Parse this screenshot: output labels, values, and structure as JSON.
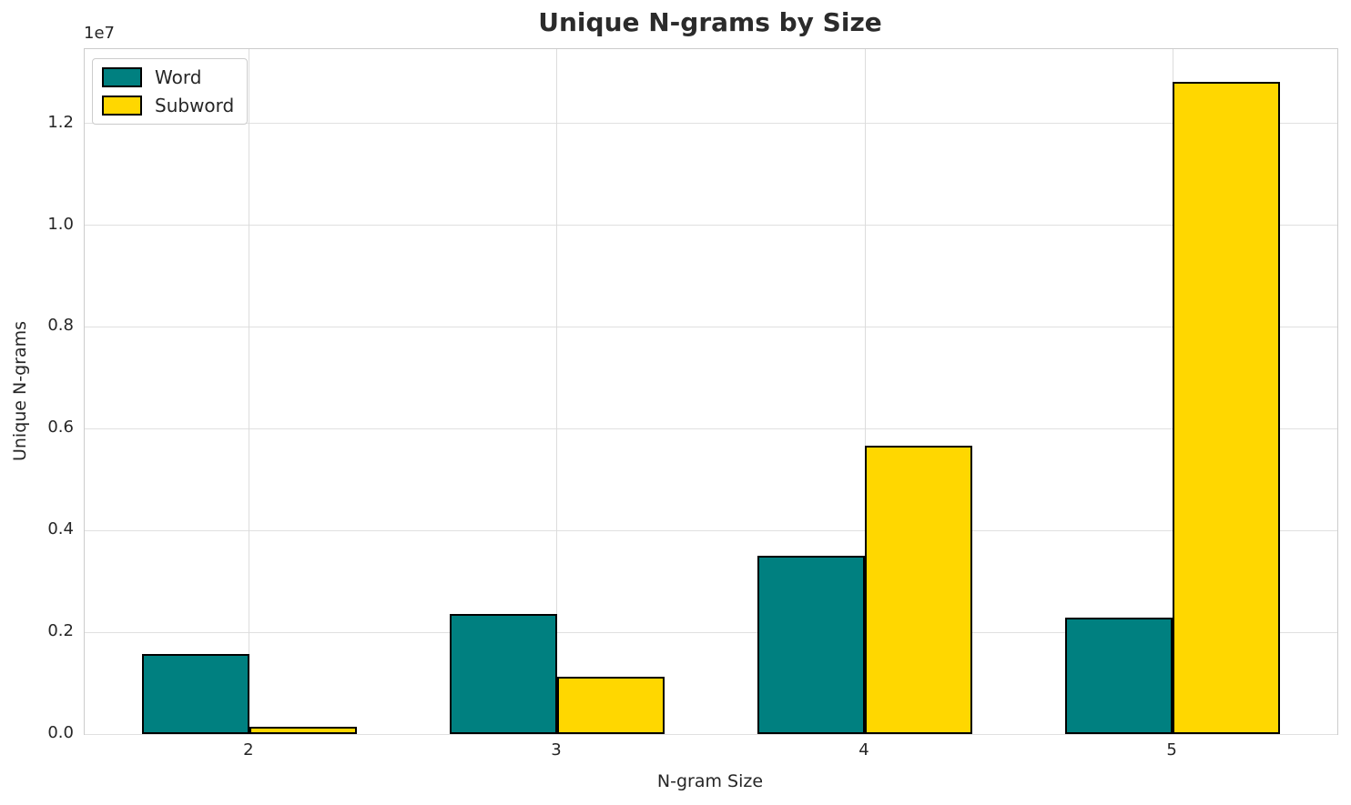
{
  "chart_data": {
    "type": "bar",
    "title": "Unique N-grams by Size",
    "xlabel": "N-gram Size",
    "ylabel": "Unique N-grams",
    "categories": [
      "2",
      "3",
      "4",
      "5"
    ],
    "series": [
      {
        "name": "Word",
        "color": "#008080",
        "values": [
          1570000,
          2360000,
          3500000,
          2290000
        ]
      },
      {
        "name": "Subword",
        "color": "#FFD700",
        "values": [
          150000,
          1130000,
          5660000,
          12820000
        ]
      }
    ],
    "bar_edge_color": "#000000",
    "bar_width_axis_units": 0.35,
    "ylim": [
      0,
      13460000
    ],
    "yticks": [
      0,
      2000000,
      4000000,
      6000000,
      8000000,
      10000000,
      12000000
    ],
    "ytick_labels": [
      "0.0",
      "0.2",
      "0.4",
      "0.6",
      "0.8",
      "1.0",
      "1.2"
    ],
    "y_offset_text": "1e7",
    "grid": true,
    "legend_position": "upper left"
  },
  "colors": {
    "text": "#262626",
    "grid": "#e0e0e0",
    "spine": "#cccccc",
    "background": "#ffffff"
  }
}
